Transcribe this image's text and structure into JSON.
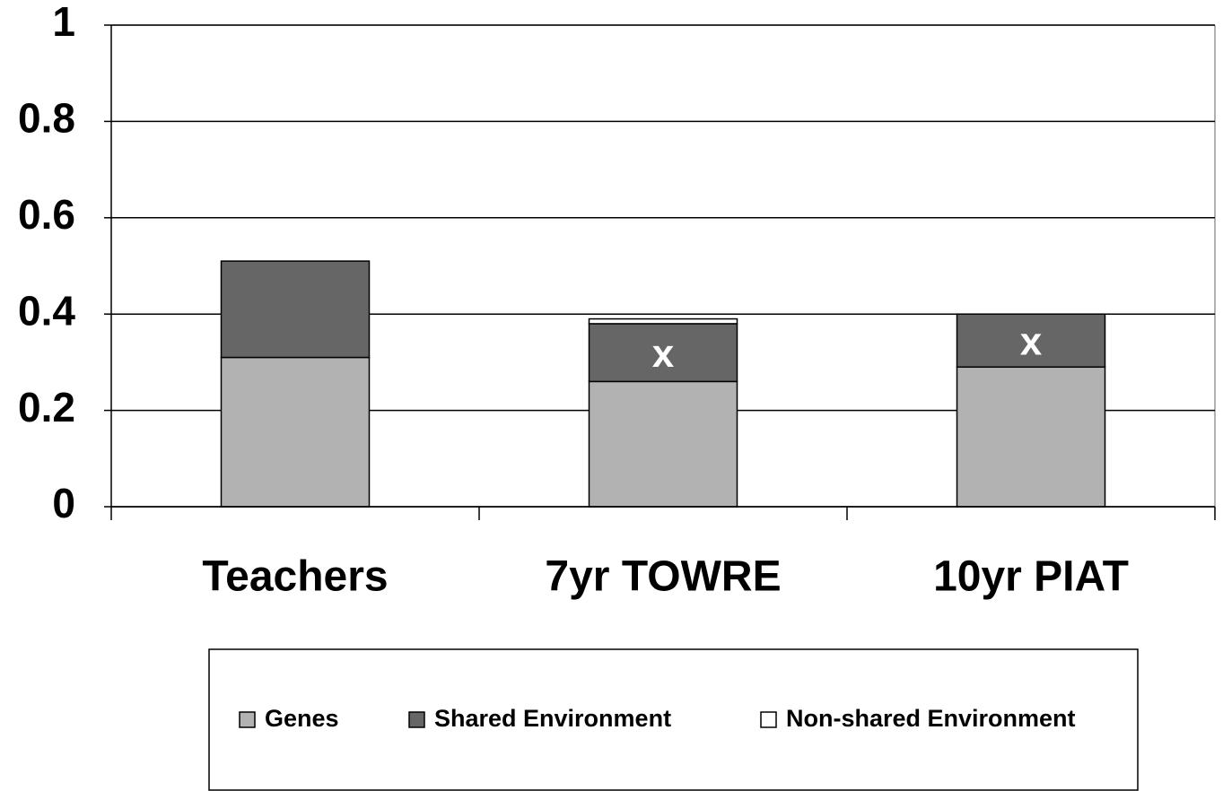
{
  "chart_data": {
    "type": "stacked_bar",
    "categories": [
      "Teachers",
      "7yr TOWRE",
      "10yr PIAT"
    ],
    "series": [
      {
        "name": "Genes",
        "color": "#b2b2b2",
        "values": [
          0.31,
          0.26,
          0.29
        ]
      },
      {
        "name": "Shared Environment",
        "color": "#666666",
        "values": [
          0.2,
          0.12,
          0.11
        ]
      },
      {
        "name": "Non-shared Environment",
        "color": "#ffffff",
        "values": [
          0,
          0.01,
          0
        ]
      }
    ],
    "annotations": [
      null,
      "x",
      "x"
    ],
    "ylim": [
      0,
      1
    ],
    "yticks": [
      0,
      0.2,
      0.4,
      0.6,
      0.8,
      1
    ],
    "grid": true
  }
}
